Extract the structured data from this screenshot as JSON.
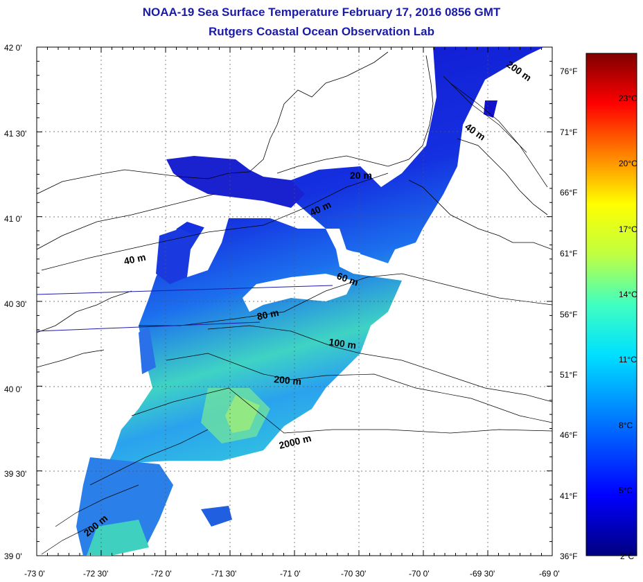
{
  "title": "NOAA-19 Sea Surface Temperature February 17, 2016 0856 GMT",
  "subtitle": "Rutgers Coastal Ocean Observation Lab",
  "lat_labels": [
    "42 0'",
    "41 30'",
    "41 0'",
    "40 30'",
    "40 0'",
    "39 30'",
    "39 0'"
  ],
  "lon_labels": [
    "-73 0'",
    "-72 30'",
    "-72 0'",
    "-71 30'",
    "-71 0'",
    "-70 30'",
    "-70 0'",
    "-69 30'",
    "-69 0'"
  ],
  "fahrenheit_labels": [
    "76°F",
    "71°F",
    "66°F",
    "61°F",
    "56°F",
    "51°F",
    "46°F",
    "41°F",
    "36°F"
  ],
  "celsius_labels": [
    "23°C",
    "20°C",
    "17°C",
    "14°C",
    "11°C",
    "8°C",
    "5°C",
    "2°C"
  ],
  "depth_labels": [
    "20 m",
    "40 m",
    "40 m",
    "60 m",
    "80 m",
    "100 m",
    "200 m",
    "2000 m",
    "200 m",
    "40 m",
    "200 m"
  ],
  "colors": {
    "title": "#1a1aa8",
    "ocean_cold": "#1a1acc",
    "ocean_warm": "#40d0b0"
  }
}
